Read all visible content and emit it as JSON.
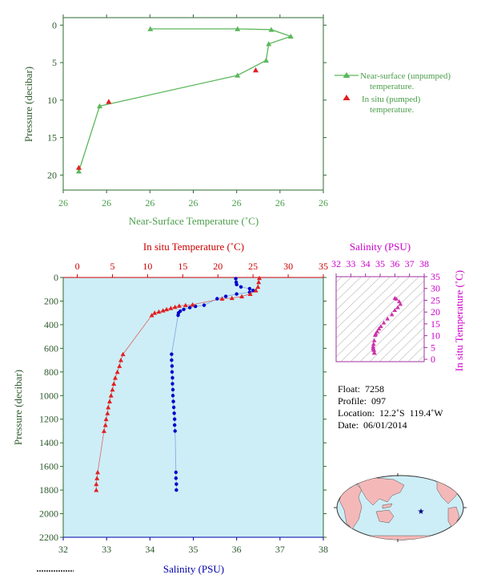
{
  "chart_data": [
    {
      "type": "line",
      "id": "near-surface",
      "xlabel": "Near-Surface Temperature (˚C)",
      "ylabel": "Pressure (decibar)",
      "x_tick_labels": [
        "26",
        "26",
        "26",
        "26",
        "26",
        "26",
        "26"
      ],
      "y_ticks": [
        0,
        5,
        10,
        15,
        20
      ],
      "ylim": [
        -1,
        22
      ],
      "series": [
        {
          "name": "Near-surface (unpumped) temperature.",
          "legend_lines": [
            "Near-surface (unpumped)",
            "temperature."
          ],
          "color": "#5cb85c",
          "marker": "triangle",
          "points": [
            {
              "x": 26.227,
              "y": 0.5
            },
            {
              "x": 26.294,
              "y": 0.5
            },
            {
              "x": 26.32,
              "y": 0.6
            },
            {
              "x": 26.335,
              "y": 1.5
            },
            {
              "x": 26.318,
              "y": 2.5
            },
            {
              "x": 26.316,
              "y": 4.7
            },
            {
              "x": 26.294,
              "y": 6.7
            },
            {
              "x": 26.188,
              "y": 10.8
            },
            {
              "x": 26.172,
              "y": 19.5
            }
          ]
        },
        {
          "name": "In situ (pumped) temperature.",
          "legend_lines": [
            "In situ (pumped)",
            "temperature."
          ],
          "color": "#e02020",
          "marker": "triangle",
          "points": [
            {
              "x": 26.308,
              "y": 6.0
            },
            {
              "x": 26.195,
              "y": 10.2
            },
            {
              "x": 26.172,
              "y": 19.0
            }
          ]
        }
      ],
      "xlim": [
        26.16,
        26.36
      ]
    },
    {
      "type": "line",
      "id": "profile",
      "ylabel": "Pressure (decibar)",
      "y_ticks": [
        0,
        200,
        400,
        600,
        800,
        1000,
        1200,
        1400,
        1600,
        1800,
        2000,
        2200
      ],
      "ylim": [
        0,
        2200
      ],
      "top_axis": {
        "label": "In situ Temperature (˚C)",
        "range": [
          -2,
          35
        ],
        "ticks": [
          0,
          5,
          10,
          15,
          20,
          25,
          30,
          35
        ],
        "color": "#cc0000"
      },
      "bottom_axis": {
        "label": "Salinity (PSU)",
        "range": [
          32,
          38
        ],
        "ticks": [
          32,
          33,
          34,
          35,
          36,
          37,
          38
        ],
        "color": "#0000aa"
      },
      "series": [
        {
          "name": "In situ Temperature",
          "color": "#e02020",
          "marker": "triangle",
          "points": [
            {
              "t": 25.9,
              "p": 5
            },
            {
              "t": 25.8,
              "p": 40
            },
            {
              "t": 25.7,
              "p": 80
            },
            {
              "t": 25.4,
              "p": 110
            },
            {
              "t": 24.6,
              "p": 140
            },
            {
              "t": 23.4,
              "p": 160
            },
            {
              "t": 22.0,
              "p": 175
            },
            {
              "t": 20.6,
              "p": 180
            },
            {
              "t": 16.4,
              "p": 230
            },
            {
              "t": 15.4,
              "p": 235
            },
            {
              "t": 14.5,
              "p": 240
            },
            {
              "t": 13.9,
              "p": 250
            },
            {
              "t": 13.3,
              "p": 260
            },
            {
              "t": 12.7,
              "p": 270
            },
            {
              "t": 12.2,
              "p": 280
            },
            {
              "t": 11.6,
              "p": 290
            },
            {
              "t": 11.0,
              "p": 300
            },
            {
              "t": 10.6,
              "p": 320
            },
            {
              "t": 6.5,
              "p": 650
            },
            {
              "t": 6.2,
              "p": 700
            },
            {
              "t": 6.0,
              "p": 750
            },
            {
              "t": 5.7,
              "p": 800
            },
            {
              "t": 5.4,
              "p": 850
            },
            {
              "t": 5.2,
              "p": 900
            },
            {
              "t": 5.0,
              "p": 950
            },
            {
              "t": 4.8,
              "p": 1000
            },
            {
              "t": 4.6,
              "p": 1050
            },
            {
              "t": 4.4,
              "p": 1100
            },
            {
              "t": 4.3,
              "p": 1150
            },
            {
              "t": 4.1,
              "p": 1200
            },
            {
              "t": 4.0,
              "p": 1250
            },
            {
              "t": 3.8,
              "p": 1300
            },
            {
              "t": 2.9,
              "p": 1650
            },
            {
              "t": 2.8,
              "p": 1700
            },
            {
              "t": 2.7,
              "p": 1750
            },
            {
              "t": 2.7,
              "p": 1800
            }
          ]
        },
        {
          "name": "Salinity",
          "color": "#0000cc",
          "marker": "circle",
          "points": [
            {
              "s": 35.98,
              "p": 10
            },
            {
              "s": 35.99,
              "p": 40
            },
            {
              "s": 36.0,
              "p": 60
            },
            {
              "s": 36.1,
              "p": 80
            },
            {
              "s": 36.3,
              "p": 95
            },
            {
              "s": 36.38,
              "p": 110
            },
            {
              "s": 36.3,
              "p": 125
            },
            {
              "s": 36.0,
              "p": 140
            },
            {
              "s": 35.75,
              "p": 160
            },
            {
              "s": 35.55,
              "p": 180
            },
            {
              "s": 35.25,
              "p": 235
            },
            {
              "s": 35.05,
              "p": 245
            },
            {
              "s": 34.92,
              "p": 255
            },
            {
              "s": 34.78,
              "p": 270
            },
            {
              "s": 34.7,
              "p": 285
            },
            {
              "s": 34.66,
              "p": 300
            },
            {
              "s": 34.65,
              "p": 320
            },
            {
              "s": 34.5,
              "p": 650
            },
            {
              "s": 34.5,
              "p": 700
            },
            {
              "s": 34.51,
              "p": 750
            },
            {
              "s": 34.51,
              "p": 800
            },
            {
              "s": 34.52,
              "p": 850
            },
            {
              "s": 34.52,
              "p": 900
            },
            {
              "s": 34.53,
              "p": 950
            },
            {
              "s": 34.53,
              "p": 1000
            },
            {
              "s": 34.54,
              "p": 1050
            },
            {
              "s": 34.55,
              "p": 1100
            },
            {
              "s": 34.56,
              "p": 1150
            },
            {
              "s": 34.57,
              "p": 1200
            },
            {
              "s": 34.57,
              "p": 1250
            },
            {
              "s": 34.58,
              "p": 1300
            },
            {
              "s": 34.6,
              "p": 1650
            },
            {
              "s": 34.6,
              "p": 1700
            },
            {
              "s": 34.61,
              "p": 1750
            },
            {
              "s": 34.61,
              "p": 1800
            }
          ]
        }
      ]
    },
    {
      "type": "scatter",
      "id": "ts-diagram",
      "xlabel": "Salinity (PSU)",
      "ylabel": "In situ Temperature (˚C)",
      "x_ticks": [
        32,
        33,
        34,
        35,
        36,
        37,
        38
      ],
      "y_ticks": [
        0,
        5,
        10,
        15,
        20,
        25,
        30,
        35
      ],
      "xlim": [
        32,
        38
      ],
      "ylim": [
        -1,
        35
      ],
      "color": "#cc33aa",
      "points": [
        {
          "s": 36.0,
          "t": 25.9
        },
        {
          "s": 36.1,
          "t": 25.6
        },
        {
          "s": 36.3,
          "t": 24.5
        },
        {
          "s": 36.38,
          "t": 23.4
        },
        {
          "s": 36.2,
          "t": 22.0
        },
        {
          "s": 36.0,
          "t": 20.8
        },
        {
          "s": 35.8,
          "t": 19.0
        },
        {
          "s": 35.5,
          "t": 17.2
        },
        {
          "s": 35.25,
          "t": 15.5
        },
        {
          "s": 35.05,
          "t": 14.0
        },
        {
          "s": 34.92,
          "t": 13.0
        },
        {
          "s": 34.8,
          "t": 11.8
        },
        {
          "s": 34.7,
          "t": 10.9
        },
        {
          "s": 34.66,
          "t": 10.3
        },
        {
          "s": 34.6,
          "t": 8.0
        },
        {
          "s": 34.55,
          "t": 6.5
        },
        {
          "s": 34.52,
          "t": 5.5
        },
        {
          "s": 34.53,
          "t": 4.8
        },
        {
          "s": 34.55,
          "t": 4.3
        },
        {
          "s": 34.57,
          "t": 3.9
        },
        {
          "s": 34.6,
          "t": 2.9
        },
        {
          "s": 34.61,
          "t": 2.7
        }
      ]
    }
  ],
  "info": {
    "float": "Float:  7258",
    "profile": "Profile:  097",
    "location": "Location:  12.2˚S  119.4˚W",
    "date": "Date:  06/01/2014"
  },
  "map": {
    "float_marker_color": "#000080",
    "float_lon": -119.4,
    "float_lat": -12.2
  }
}
